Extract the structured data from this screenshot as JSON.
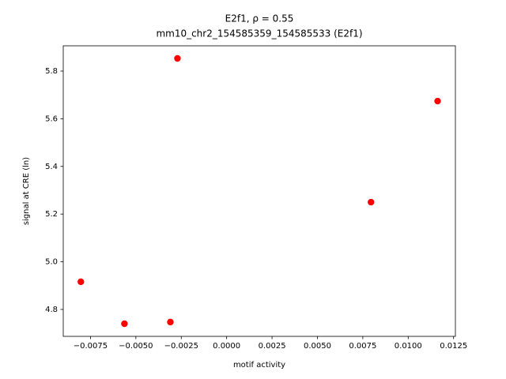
{
  "chart_data": {
    "type": "scatter",
    "title": "E2f1, ρ = 0.55",
    "subtitle": "mm10_chr2_154585359_154585533 (E2f1)",
    "x_label": "motif activity",
    "y_label": "signal at CRE (ln)",
    "color": "#ff0000",
    "x": [
      -0.00803,
      -0.00563,
      -0.0031,
      -0.00271,
      0.00795,
      0.01162
    ],
    "values": [
      4.916,
      4.74,
      4.747,
      5.853,
      5.25,
      5.674
    ],
    "xlim": [
      -0.009,
      0.0126
    ],
    "ylim": [
      4.687,
      5.906
    ],
    "xticks": [
      {
        "value": -0.0075,
        "label": "−0.0075"
      },
      {
        "value": -0.005,
        "label": "−0.0050"
      },
      {
        "value": -0.0025,
        "label": "−0.0025"
      },
      {
        "value": 0,
        "label": "0.0000"
      },
      {
        "value": 0.0025,
        "label": "0.0025"
      },
      {
        "value": 0.005,
        "label": "0.0050"
      },
      {
        "value": 0.0075,
        "label": "0.0075"
      },
      {
        "value": 0.01,
        "label": "0.0100"
      },
      {
        "value": 0.0125,
        "label": "0.0125"
      }
    ],
    "yticks": [
      4.8,
      {
        "value": 5,
        "label": "5.0"
      },
      5.2,
      5.4,
      5.6,
      5.8
    ]
  }
}
